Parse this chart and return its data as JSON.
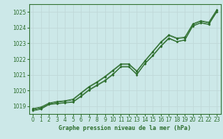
{
  "title": "Graphe pression niveau de la mer (hPa)",
  "background_color": "#cce8e8",
  "grid_color": "#c0d8d8",
  "line_color": "#2d6e2d",
  "xlim": [
    -0.5,
    23.5
  ],
  "ylim": [
    1018.5,
    1025.5
  ],
  "yticks": [
    1019,
    1020,
    1021,
    1022,
    1023,
    1024,
    1025
  ],
  "xticks": [
    0,
    1,
    2,
    3,
    4,
    5,
    6,
    7,
    8,
    9,
    10,
    11,
    12,
    13,
    14,
    15,
    16,
    17,
    18,
    19,
    20,
    21,
    22,
    23
  ],
  "series": [
    [
      1018.7,
      1018.8,
      1019.1,
      1019.15,
      1019.2,
      1019.25,
      1019.6,
      1020.0,
      1020.3,
      1020.6,
      1021.0,
      1021.5,
      1021.5,
      1021.0,
      1021.7,
      1022.2,
      1022.8,
      1023.3,
      1023.1,
      1023.2,
      1024.1,
      1024.3,
      1024.2,
      1025.0
    ],
    [
      1018.75,
      1018.85,
      1019.12,
      1019.18,
      1019.22,
      1019.28,
      1019.65,
      1020.05,
      1020.35,
      1020.65,
      1021.05,
      1021.52,
      1021.52,
      1021.05,
      1021.72,
      1022.25,
      1022.85,
      1023.35,
      1023.12,
      1023.22,
      1024.12,
      1024.32,
      1024.22,
      1025.02
    ],
    [
      1018.8,
      1018.9,
      1019.15,
      1019.25,
      1019.3,
      1019.4,
      1019.8,
      1020.2,
      1020.5,
      1020.85,
      1021.25,
      1021.65,
      1021.65,
      1021.2,
      1021.85,
      1022.45,
      1023.05,
      1023.5,
      1023.3,
      1023.35,
      1024.2,
      1024.4,
      1024.3,
      1025.1
    ],
    [
      1018.85,
      1018.95,
      1019.2,
      1019.3,
      1019.35,
      1019.45,
      1019.85,
      1020.25,
      1020.55,
      1020.9,
      1021.3,
      1021.7,
      1021.7,
      1021.25,
      1021.9,
      1022.5,
      1023.1,
      1023.55,
      1023.35,
      1023.4,
      1024.25,
      1024.45,
      1024.35,
      1025.15
    ]
  ],
  "title_fontsize": 6,
  "tick_fontsize": 5.5
}
